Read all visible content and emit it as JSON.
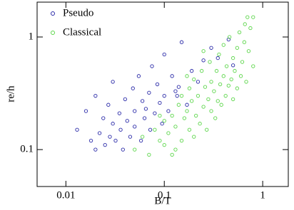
{
  "chart_data": {
    "type": "scatter",
    "xlabel": "B/T",
    "ylabel": "re/h",
    "xscale": "log",
    "yscale": "log",
    "xlim": [
      0.0051,
      1.82
    ],
    "ylim": [
      0.047,
      2.04
    ],
    "xticks": [
      0.01,
      0.1,
      1
    ],
    "yticks": [
      0.1,
      1
    ],
    "legend": "upper left",
    "series": [
      {
        "name": "Pseudo",
        "color": "#2a2aa8",
        "x": [
          0.013,
          0.016,
          0.018,
          0.02,
          0.02,
          0.022,
          0.024,
          0.025,
          0.027,
          0.028,
          0.03,
          0.03,
          0.032,
          0.035,
          0.036,
          0.038,
          0.04,
          0.042,
          0.045,
          0.048,
          0.05,
          0.05,
          0.055,
          0.058,
          0.06,
          0.063,
          0.065,
          0.07,
          0.072,
          0.075,
          0.08,
          0.085,
          0.09,
          0.095,
          0.1,
          0.1,
          0.11,
          0.12,
          0.13,
          0.135,
          0.14,
          0.15,
          0.17,
          0.19,
          0.22,
          0.25,
          0.3,
          0.35,
          0.45,
          0.5
        ],
        "values": [
          0.15,
          0.22,
          0.12,
          0.1,
          0.3,
          0.14,
          0.19,
          0.11,
          0.25,
          0.13,
          0.17,
          0.4,
          0.12,
          0.21,
          0.15,
          0.1,
          0.28,
          0.18,
          0.13,
          0.35,
          0.22,
          0.16,
          0.45,
          0.12,
          0.27,
          0.19,
          0.23,
          0.32,
          0.15,
          0.55,
          0.21,
          0.38,
          0.26,
          0.17,
          0.3,
          0.7,
          0.22,
          0.45,
          0.33,
          0.3,
          0.36,
          0.9,
          0.25,
          0.5,
          0.4,
          0.62,
          0.8,
          0.65,
          0.95,
          0.56
        ]
      },
      {
        "name": "Classical",
        "color": "#5cd64a",
        "x": [
          0.05,
          0.06,
          0.07,
          0.08,
          0.09,
          0.1,
          0.1,
          0.11,
          0.12,
          0.12,
          0.13,
          0.14,
          0.15,
          0.15,
          0.16,
          0.17,
          0.18,
          0.18,
          0.19,
          0.2,
          0.2,
          0.21,
          0.22,
          0.23,
          0.24,
          0.25,
          0.26,
          0.27,
          0.28,
          0.29,
          0.3,
          0.3,
          0.32,
          0.33,
          0.34,
          0.35,
          0.36,
          0.37,
          0.38,
          0.4,
          0.4,
          0.42,
          0.43,
          0.45,
          0.46,
          0.48,
          0.5,
          0.5,
          0.52,
          0.55,
          0.55,
          0.58,
          0.6,
          0.62,
          0.65,
          0.68,
          0.7,
          0.72,
          0.75,
          0.8,
          0.8,
          0.66,
          0.25,
          0.17,
          0.13,
          0.09
        ],
        "values": [
          0.1,
          0.13,
          0.09,
          0.15,
          0.12,
          0.18,
          0.11,
          0.14,
          0.2,
          0.09,
          0.16,
          0.25,
          0.12,
          0.3,
          0.19,
          0.22,
          0.15,
          0.35,
          0.27,
          0.13,
          0.42,
          0.2,
          0.3,
          0.17,
          0.5,
          0.24,
          0.36,
          0.15,
          0.28,
          0.6,
          0.22,
          0.4,
          0.33,
          0.19,
          0.5,
          0.27,
          0.7,
          0.38,
          0.25,
          0.45,
          0.85,
          0.3,
          0.55,
          0.37,
          1.0,
          0.42,
          0.28,
          0.65,
          0.5,
          0.8,
          0.35,
          1.1,
          0.45,
          0.6,
          0.9,
          0.4,
          1.5,
          0.75,
          1.2,
          0.55,
          1.5,
          1.3,
          0.75,
          0.45,
          0.1,
          0.2
        ]
      }
    ]
  }
}
